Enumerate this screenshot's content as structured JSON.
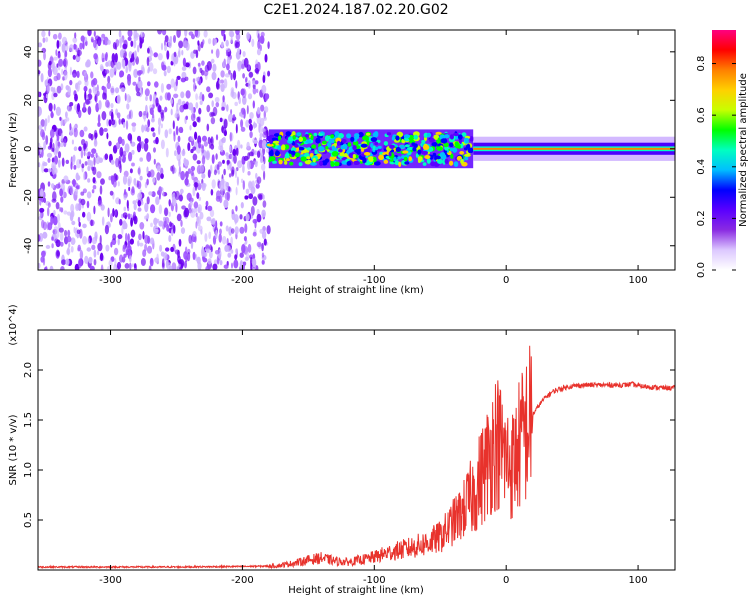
{
  "title": "C2E1.2024.187.02.20.G02",
  "chart_data": [
    {
      "type": "heatmap",
      "xlabel": "Height of straight line (km)",
      "ylabel": "Frequency (Hz)",
      "xlim": [
        -355,
        128
      ],
      "ylim": [
        -50,
        49
      ],
      "xticks": [
        -300,
        -200,
        -100,
        0,
        100
      ],
      "yticks": [
        -40,
        -20,
        0,
        20,
        40
      ],
      "colorbar": {
        "label": "Normalized spectral amplitude",
        "range": [
          0.0,
          0.93
        ],
        "ticks": [
          "0.0",
          "0.2",
          "0.4",
          "0.6",
          "0.8"
        ],
        "colors": [
          "#ffffff",
          "#dcc8ff",
          "#8a2be2",
          "#5a00ff",
          "#0000ff",
          "#00bfff",
          "#00ffc0",
          "#00ff00",
          "#c8ff00",
          "#ffd000",
          "#ff8000",
          "#ff0000",
          "#ff0080"
        ]
      },
      "regions": [
        {
          "x_range": [
            -355,
            -180
          ],
          "freq_range": [
            -50,
            49
          ],
          "amplitude": 0.05,
          "pattern": "broadband speckle"
        },
        {
          "x_range": [
            -180,
            -25
          ],
          "freq_center": 0,
          "freq_width": 8,
          "amplitude": 0.35,
          "pattern": "fragmented narrow band"
        },
        {
          "x_range": [
            -25,
            128
          ],
          "freq_center": 0,
          "freq_width": 5,
          "amplitude": 0.8,
          "pattern": "steady narrow band"
        }
      ]
    },
    {
      "type": "line",
      "xlabel": "Height of straight line (km)",
      "ylabel": "SNR (10 * v/v)",
      "y_multiplier": "(x10^4)",
      "xlim": [
        -355,
        128
      ],
      "ylim": [
        0,
        24000
      ],
      "xticks": [
        -300,
        -200,
        -100,
        0,
        100
      ],
      "yticks": [
        "0.5",
        "1.0",
        "1.5",
        "2.0"
      ],
      "series": [
        {
          "color": "#e8322c",
          "x": [
            -355,
            -300,
            -250,
            -200,
            -175,
            -160,
            -150,
            -140,
            -130,
            -120,
            -110,
            -100,
            -90,
            -80,
            -70,
            -60,
            -50,
            -45,
            -40,
            -35,
            -30,
            -25,
            -20,
            -15,
            -12,
            -10,
            -8,
            -5,
            0,
            5,
            10,
            15,
            20,
            25,
            30,
            35,
            40,
            50,
            60,
            70,
            80,
            90,
            95,
            100,
            110,
            120,
            128
          ],
          "y": [
            300,
            300,
            300,
            350,
            400,
            700,
            1000,
            1200,
            900,
            800,
            1000,
            1300,
            1700,
            2000,
            2300,
            2700,
            3300,
            4000,
            4800,
            5500,
            6500,
            7500,
            9000,
            10500,
            11500,
            12500,
            13000,
            12500,
            11000,
            10500,
            12500,
            14000,
            15500,
            16500,
            17300,
            17800,
            18100,
            18400,
            18500,
            18500,
            18500,
            18500,
            18600,
            18400,
            18300,
            18200,
            18200
          ]
        }
      ]
    }
  ]
}
